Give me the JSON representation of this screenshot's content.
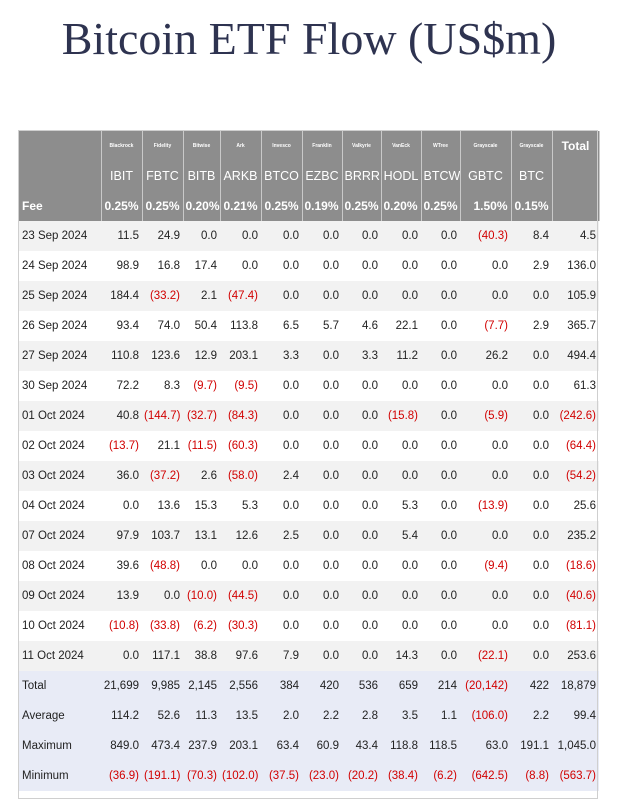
{
  "title": "Bitcoin ETF Flow (US$m)",
  "columns": [
    {
      "issuer": "Blackrock",
      "ticker": "IBIT",
      "fee": "0.25%"
    },
    {
      "issuer": "Fidelity",
      "ticker": "FBTC",
      "fee": "0.25%"
    },
    {
      "issuer": "Bitwise",
      "ticker": "BITB",
      "fee": "0.20%"
    },
    {
      "issuer": "Ark",
      "ticker": "ARKB",
      "fee": "0.21%"
    },
    {
      "issuer": "Invesco",
      "ticker": "BTCO",
      "fee": "0.25%"
    },
    {
      "issuer": "Franklin",
      "ticker": "EZBC",
      "fee": "0.19%"
    },
    {
      "issuer": "Valkyrie",
      "ticker": "BRRR",
      "fee": "0.25%"
    },
    {
      "issuer": "VanEck",
      "ticker": "HODL",
      "fee": "0.20%"
    },
    {
      "issuer": "WTree",
      "ticker": "BTCW",
      "fee": "0.25%"
    },
    {
      "issuer": "Grayscale",
      "ticker": "GBTC",
      "fee": "1.50%"
    },
    {
      "issuer": "Grayscale",
      "ticker": "BTC",
      "fee": "0.15%"
    }
  ],
  "total_header": "Total",
  "fee_label": "Fee",
  "rows": [
    {
      "date": "23 Sep 2024",
      "values": [
        "11.5",
        "24.9",
        "0.0",
        "0.0",
        "0.0",
        "0.0",
        "0.0",
        "0.0",
        "0.0",
        "(40.3)",
        "8.4"
      ],
      "total": "4.5"
    },
    {
      "date": "24 Sep 2024",
      "values": [
        "98.9",
        "16.8",
        "17.4",
        "0.0",
        "0.0",
        "0.0",
        "0.0",
        "0.0",
        "0.0",
        "0.0",
        "2.9"
      ],
      "total": "136.0"
    },
    {
      "date": "25 Sep 2024",
      "values": [
        "184.4",
        "(33.2)",
        "2.1",
        "(47.4)",
        "0.0",
        "0.0",
        "0.0",
        "0.0",
        "0.0",
        "0.0",
        "0.0"
      ],
      "total": "105.9"
    },
    {
      "date": "26 Sep 2024",
      "values": [
        "93.4",
        "74.0",
        "50.4",
        "113.8",
        "6.5",
        "5.7",
        "4.6",
        "22.1",
        "0.0",
        "(7.7)",
        "2.9"
      ],
      "total": "365.7"
    },
    {
      "date": "27 Sep 2024",
      "values": [
        "110.8",
        "123.6",
        "12.9",
        "203.1",
        "3.3",
        "0.0",
        "3.3",
        "11.2",
        "0.0",
        "26.2",
        "0.0"
      ],
      "total": "494.4"
    },
    {
      "date": "30 Sep 2024",
      "values": [
        "72.2",
        "8.3",
        "(9.7)",
        "(9.5)",
        "0.0",
        "0.0",
        "0.0",
        "0.0",
        "0.0",
        "0.0",
        "0.0"
      ],
      "total": "61.3"
    },
    {
      "date": "01 Oct 2024",
      "values": [
        "40.8",
        "(144.7)",
        "(32.7)",
        "(84.3)",
        "0.0",
        "0.0",
        "0.0",
        "(15.8)",
        "0.0",
        "(5.9)",
        "0.0"
      ],
      "total": "(242.6)"
    },
    {
      "date": "02 Oct 2024",
      "values": [
        "(13.7)",
        "21.1",
        "(11.5)",
        "(60.3)",
        "0.0",
        "0.0",
        "0.0",
        "0.0",
        "0.0",
        "0.0",
        "0.0"
      ],
      "total": "(64.4)"
    },
    {
      "date": "03 Oct 2024",
      "values": [
        "36.0",
        "(37.2)",
        "2.6",
        "(58.0)",
        "2.4",
        "0.0",
        "0.0",
        "0.0",
        "0.0",
        "0.0",
        "0.0"
      ],
      "total": "(54.2)"
    },
    {
      "date": "04 Oct 2024",
      "values": [
        "0.0",
        "13.6",
        "15.3",
        "5.3",
        "0.0",
        "0.0",
        "0.0",
        "5.3",
        "0.0",
        "(13.9)",
        "0.0"
      ],
      "total": "25.6"
    },
    {
      "date": "07 Oct 2024",
      "values": [
        "97.9",
        "103.7",
        "13.1",
        "12.6",
        "2.5",
        "0.0",
        "0.0",
        "5.4",
        "0.0",
        "0.0",
        "0.0"
      ],
      "total": "235.2"
    },
    {
      "date": "08 Oct 2024",
      "values": [
        "39.6",
        "(48.8)",
        "0.0",
        "0.0",
        "0.0",
        "0.0",
        "0.0",
        "0.0",
        "0.0",
        "(9.4)",
        "0.0"
      ],
      "total": "(18.6)"
    },
    {
      "date": "09 Oct 2024",
      "values": [
        "13.9",
        "0.0",
        "(10.0)",
        "(44.5)",
        "0.0",
        "0.0",
        "0.0",
        "0.0",
        "0.0",
        "0.0",
        "0.0"
      ],
      "total": "(40.6)"
    },
    {
      "date": "10 Oct 2024",
      "values": [
        "(10.8)",
        "(33.8)",
        "(6.2)",
        "(30.3)",
        "0.0",
        "0.0",
        "0.0",
        "0.0",
        "0.0",
        "0.0",
        "0.0"
      ],
      "total": "(81.1)"
    },
    {
      "date": "11 Oct 2024",
      "values": [
        "0.0",
        "117.1",
        "38.8",
        "97.6",
        "7.9",
        "0.0",
        "0.0",
        "14.3",
        "0.0",
        "(22.1)",
        "0.0"
      ],
      "total": "253.6"
    }
  ],
  "summary": [
    {
      "label": "Total",
      "values": [
        "21,699",
        "9,985",
        "2,145",
        "2,556",
        "384",
        "420",
        "536",
        "659",
        "214",
        "(20,142)",
        "422"
      ],
      "total": "18,879"
    },
    {
      "label": "Average",
      "values": [
        "114.2",
        "52.6",
        "11.3",
        "13.5",
        "2.0",
        "2.2",
        "2.8",
        "3.5",
        "1.1",
        "(106.0)",
        "2.2"
      ],
      "total": "99.4"
    },
    {
      "label": "Maximum",
      "values": [
        "849.0",
        "473.4",
        "237.9",
        "203.1",
        "63.4",
        "60.9",
        "43.4",
        "118.8",
        "118.5",
        "63.0",
        "191.1"
      ],
      "total": "1,045.0"
    },
    {
      "label": "Minimum",
      "values": [
        "(36.9)",
        "(191.1)",
        "(70.3)",
        "(102.0)",
        "(37.5)",
        "(23.0)",
        "(20.2)",
        "(38.4)",
        "(6.2)",
        "(642.5)",
        "(8.8)"
      ],
      "total": "(563.7)"
    }
  ],
  "colors": {
    "header_bg": "#8d8d8d",
    "negative": "#d10000",
    "row_alt": "#f2f2f2",
    "summary_bg": "#e8ebf6",
    "title": "#2e3350"
  }
}
